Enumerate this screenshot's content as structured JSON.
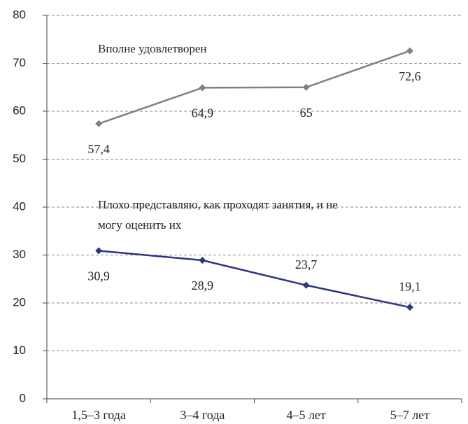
{
  "chart_data": {
    "type": "line",
    "categories": [
      "1,5–3 года",
      "3–4 года",
      "4–5 лет",
      "5–7 лет"
    ],
    "series": [
      {
        "name": "Вполне удовлетворен",
        "color": "#808080",
        "values": [
          57.4,
          64.9,
          65,
          72.6
        ],
        "value_labels": [
          "57,4",
          "64,9",
          "65",
          "72,6"
        ]
      },
      {
        "name": "Плохо представляю, как проходят занятия, и не могу оценить их",
        "color": "#2e3580",
        "values": [
          30.9,
          28.9,
          23.7,
          19.1
        ],
        "value_labels": [
          "30,9",
          "28,9",
          "23,7",
          "19,1"
        ]
      }
    ],
    "ylim": [
      0,
      80
    ],
    "yticks": [
      0,
      10,
      20,
      30,
      40,
      50,
      60,
      70,
      80
    ],
    "grid": true
  }
}
